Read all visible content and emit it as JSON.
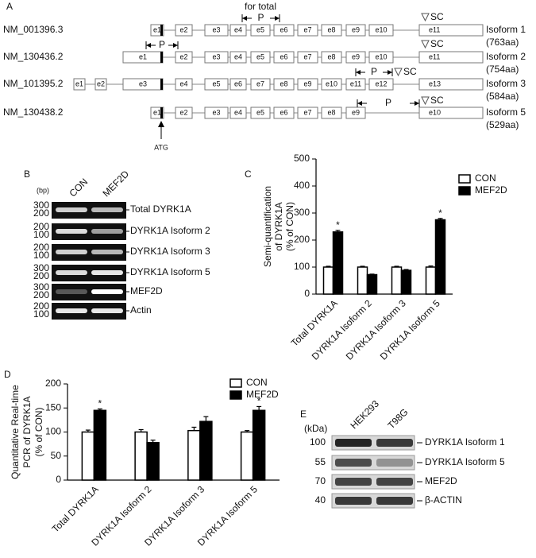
{
  "panel_a": {
    "label": "A",
    "primer_label": "for total",
    "primer": "P",
    "stop": "SC",
    "start": "ATG",
    "transcripts": [
      {
        "accession": "NM_001396.3",
        "exons": [
          "e1",
          "e2",
          "e3",
          "e4",
          "e5",
          "e6",
          "e7",
          "e8",
          "e9",
          "e10",
          "e11"
        ],
        "isoform": "Isoform 1",
        "length": "(763aa)"
      },
      {
        "accession": "NM_130436.2",
        "exons": [
          "e1",
          "e2",
          "e3",
          "e4",
          "e5",
          "e6",
          "e7",
          "e8",
          "e9",
          "e10",
          "e11"
        ],
        "isoform": "Isoform 2",
        "length": "(754aa)"
      },
      {
        "accession": "NM_101395.2",
        "exons": [
          "e1",
          "e2",
          "e3",
          "e4",
          "e5",
          "e6",
          "e7",
          "e8",
          "e9",
          "e10",
          "e11",
          "e12",
          "e13"
        ],
        "isoform": "Isoform 3",
        "length": "(584aa)"
      },
      {
        "accession": "NM_130438.2",
        "exons": [
          "e1",
          "e2",
          "e3",
          "e4",
          "e5",
          "e6",
          "e7",
          "e8",
          "e9",
          "e10"
        ],
        "isoform": "Isoform 5",
        "length": "(529aa)"
      }
    ]
  },
  "panel_b": {
    "label": "B",
    "unit": "(bp)",
    "lanes": [
      "CON",
      "MEF2D"
    ],
    "blots": [
      {
        "name": "Total DYRK1A",
        "markers": [
          300,
          200
        ]
      },
      {
        "name": "DYRK1A Isoform 2",
        "markers": [
          200,
          100
        ]
      },
      {
        "name": "DYRK1A Isoform 3",
        "markers": [
          200,
          100
        ]
      },
      {
        "name": "DYRK1A Isoform 5",
        "markers": [
          300,
          200
        ]
      },
      {
        "name": "MEF2D",
        "markers": [
          300,
          200
        ]
      },
      {
        "name": "Actin",
        "markers": [
          200,
          100
        ]
      }
    ]
  },
  "chart_data": [
    {
      "type": "bar",
      "label": "C",
      "ylabel": [
        "Semi-quantification",
        "of DYRK1A",
        "(% of CON)"
      ],
      "categories": [
        "Total DYRK1A",
        "DYRK1A Isoform 2",
        "DYRK1A Isoform 3",
        "DYRK1A Isoform 5"
      ],
      "series": [
        {
          "name": "CON",
          "color": "#ffffff",
          "values": [
            100,
            100,
            100,
            100
          ],
          "errors": [
            3,
            3,
            3,
            4
          ]
        },
        {
          "name": "MEF2D",
          "color": "#000000",
          "values": [
            230,
            72,
            88,
            275
          ],
          "errors": [
            6,
            2,
            3,
            5
          ]
        }
      ],
      "significance": [
        "*",
        null,
        null,
        "*"
      ],
      "ylim": [
        0,
        500
      ],
      "yticks": [
        0,
        100,
        200,
        300,
        400,
        500
      ],
      "legend": "top-right"
    },
    {
      "type": "bar",
      "label": "D",
      "ylabel": [
        "Quantitative Real-time",
        "PCR of DYRK1A",
        "(% of CON)"
      ],
      "categories": [
        "Total DYRK1A",
        "DYRK1A Isoform 2",
        "DYRK1A Isoform 3",
        "DYRK1A Isoform 5"
      ],
      "series": [
        {
          "name": "CON",
          "color": "#ffffff",
          "values": [
            100,
            100,
            103,
            100
          ],
          "errors": [
            4,
            5,
            7,
            3
          ]
        },
        {
          "name": "MEF2D",
          "color": "#000000",
          "values": [
            145,
            78,
            122,
            145
          ],
          "errors": [
            3,
            5,
            10,
            8
          ]
        }
      ],
      "significance": [
        "*",
        null,
        null,
        "*"
      ],
      "ylim": [
        0,
        200
      ],
      "yticks": [
        0,
        50,
        100,
        150,
        200
      ],
      "legend": "top-right"
    }
  ],
  "panel_e": {
    "label": "E",
    "unit": "(kDa)",
    "lanes": [
      "HEK293",
      "T98G"
    ],
    "blots": [
      {
        "name": "DYRK1A Isoform 1",
        "marker": 100
      },
      {
        "name": "DYRK1A Isoform 5",
        "marker": 55
      },
      {
        "name": "MEF2D",
        "marker": 70
      },
      {
        "name": "β-ACTIN",
        "marker": 40
      }
    ]
  }
}
